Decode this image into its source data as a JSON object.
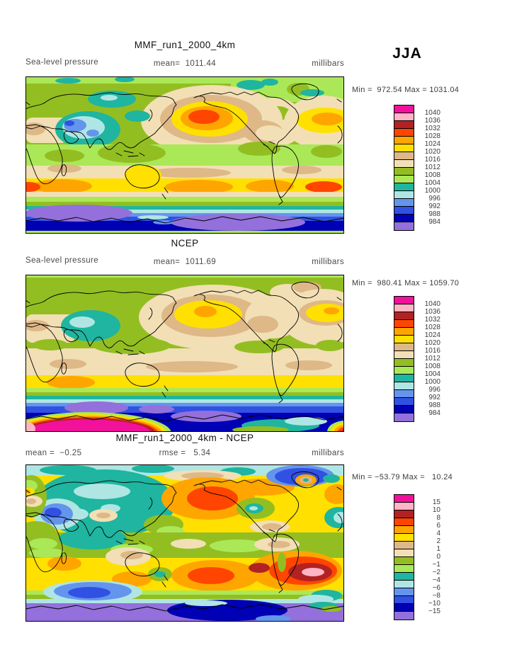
{
  "season_label": "JJA",
  "panels": [
    {
      "title": "MMF_run1_2000_4km",
      "header_left": "Sea-level pressure",
      "header_center": "mean=  1011.44",
      "header_right": "millibars",
      "minmax": "Min =  972.54 Max = 1031.04",
      "legend": {
        "labels": [
          "1040",
          "1036",
          "1032",
          "1028",
          "1024",
          "1020",
          "1016",
          "1012",
          "1008",
          "1004",
          "1000",
          "996",
          "992",
          "988",
          "984"
        ],
        "colors": [
          "#F2119B",
          "#FFB5C5",
          "#B22222",
          "#FF4500",
          "#FFA500",
          "#FFE000",
          "#DEB887",
          "#F2DFB5",
          "#93BE22",
          "#ABE857",
          "#1FB5A0",
          "#AFE6E4",
          "#6495ED",
          "#3151E3",
          "#0000B4",
          "#9370DB"
        ]
      }
    },
    {
      "title": "NCEP",
      "header_left": "Sea-level pressure",
      "header_center": "mean=  1011.69",
      "header_right": "millibars",
      "minmax": "Min =  980.41 Max = 1059.70",
      "legend": {
        "labels": [
          "1040",
          "1036",
          "1032",
          "1028",
          "1024",
          "1020",
          "1016",
          "1012",
          "1008",
          "1004",
          "1000",
          "996",
          "992",
          "988",
          "984"
        ],
        "colors": [
          "#F2119B",
          "#FFB5C5",
          "#B22222",
          "#FF4500",
          "#FFA500",
          "#FFE000",
          "#DEB887",
          "#F2DFB5",
          "#93BE22",
          "#ABE857",
          "#1FB5A0",
          "#AFE6E4",
          "#6495ED",
          "#3151E3",
          "#0000B4",
          "#9370DB"
        ]
      }
    },
    {
      "title": "MMF_run1_2000_4km - NCEP",
      "header_left": "mean =  −0.25",
      "header_center": "rmse =   5.34",
      "header_right": "millibars",
      "minmax": "Min = −53.79 Max =   10.24",
      "legend": {
        "labels": [
          "15",
          "10",
          "8",
          "6",
          "4",
          "2",
          "1",
          "0",
          "−1",
          "−2",
          "−4",
          "−6",
          "−8",
          "−10",
          "−15"
        ],
        "colors": [
          "#F2119B",
          "#FFB5C5",
          "#B22222",
          "#FF4500",
          "#FFA500",
          "#FFE000",
          "#DEB887",
          "#F2DFB5",
          "#93BE22",
          "#ABE857",
          "#1FB5A0",
          "#AFE6E4",
          "#6495ED",
          "#3151E3",
          "#0000B4",
          "#9370DB"
        ]
      }
    }
  ],
  "chart_data": [
    {
      "type": "heatmap",
      "subtype": "filled_contour_global_map",
      "title": "MMF_run1_2000_4km",
      "season": "JJA",
      "variable": "Sea-level pressure",
      "units": "millibars",
      "projection": "equirectangular_global",
      "stats": {
        "mean": 1011.44,
        "min": 972.54,
        "max": 1031.04
      },
      "contour_levels": [
        984,
        988,
        992,
        996,
        1000,
        1004,
        1008,
        1012,
        1016,
        1020,
        1024,
        1028,
        1032,
        1036,
        1040
      ],
      "palette_low_to_high": [
        "#9370DB",
        "#0000B4",
        "#3151E3",
        "#6495ED",
        "#AFE6E4",
        "#1FB5A0",
        "#ABE857",
        "#93BE22",
        "#F2DFB5",
        "#DEB887",
        "#FFE000",
        "#FFA500",
        "#FF4500",
        "#B22222",
        "#FFB5C5",
        "#F2119B"
      ],
      "legend_position": "right",
      "grid": false
    },
    {
      "type": "heatmap",
      "subtype": "filled_contour_global_map",
      "title": "NCEP",
      "season": "JJA",
      "variable": "Sea-level pressure",
      "units": "millibars",
      "projection": "equirectangular_global",
      "stats": {
        "mean": 1011.69,
        "min": 980.41,
        "max": 1059.7
      },
      "contour_levels": [
        984,
        988,
        992,
        996,
        1000,
        1004,
        1008,
        1012,
        1016,
        1020,
        1024,
        1028,
        1032,
        1036,
        1040
      ],
      "palette_low_to_high": [
        "#9370DB",
        "#0000B4",
        "#3151E3",
        "#6495ED",
        "#AFE6E4",
        "#1FB5A0",
        "#ABE857",
        "#93BE22",
        "#F2DFB5",
        "#DEB887",
        "#FFE000",
        "#FFA500",
        "#FF4500",
        "#B22222",
        "#FFB5C5",
        "#F2119B"
      ],
      "legend_position": "right",
      "grid": false
    },
    {
      "type": "heatmap",
      "subtype": "filled_contour_global_map_difference",
      "title": "MMF_run1_2000_4km - NCEP",
      "season": "JJA",
      "variable": "Sea-level pressure difference",
      "units": "millibars",
      "projection": "equirectangular_global",
      "stats": {
        "mean": -0.25,
        "rmse": 5.34,
        "min": -53.79,
        "max": 10.24
      },
      "contour_levels": [
        -15,
        -10,
        -8,
        -6,
        -4,
        -2,
        -1,
        0,
        1,
        2,
        4,
        6,
        8,
        10,
        15
      ],
      "palette_low_to_high": [
        "#9370DB",
        "#0000B4",
        "#3151E3",
        "#6495ED",
        "#AFE6E4",
        "#1FB5A0",
        "#ABE857",
        "#93BE22",
        "#F2DFB5",
        "#DEB887",
        "#FFE000",
        "#FFA500",
        "#FF4500",
        "#B22222",
        "#FFB5C5",
        "#F2119B"
      ],
      "legend_position": "right",
      "grid": false
    }
  ]
}
